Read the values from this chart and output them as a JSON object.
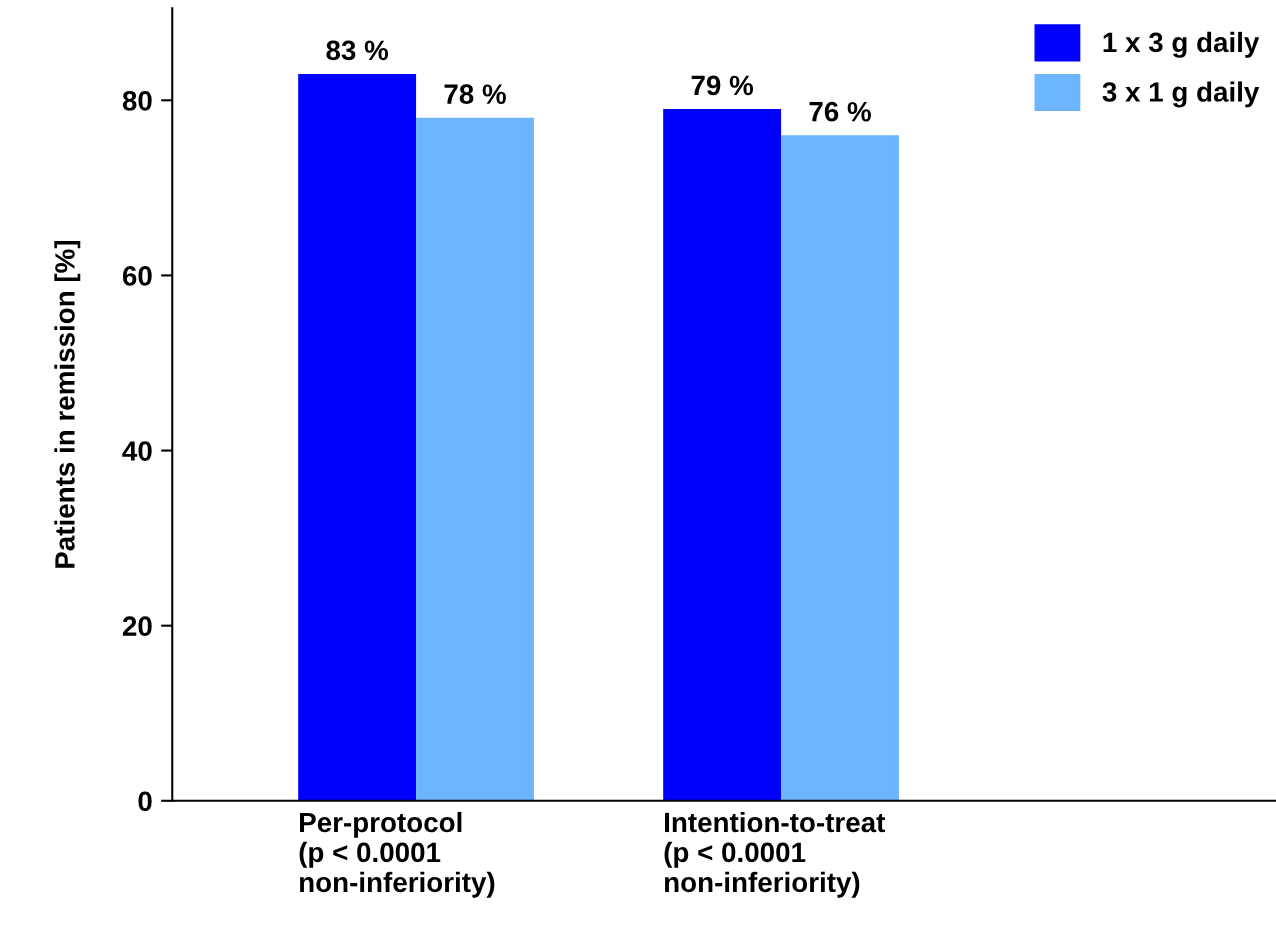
{
  "chart_data": {
    "type": "bar",
    "ylabel": "Patients in remission [%]",
    "categories": [
      "Per-protocol\n(p < 0.0001\nnon-inferiority)",
      "Intention-to-treat\n(p < 0.0001\nnon-inferiority)"
    ],
    "series": [
      {
        "name": "1 x 3 g daily",
        "color": "#0000ff",
        "values": [
          83,
          79
        ],
        "value_labels": [
          "83 %",
          "79 %"
        ]
      },
      {
        "name": "3 x 1 g daily",
        "color": "#6db6ff",
        "values": [
          78,
          76
        ],
        "value_labels": [
          "78 %",
          "76 %"
        ]
      }
    ],
    "ylim": [
      0,
      90.5
    ],
    "yticks": [
      0,
      20,
      40,
      60,
      80
    ],
    "grid": false,
    "legend": "top right"
  }
}
